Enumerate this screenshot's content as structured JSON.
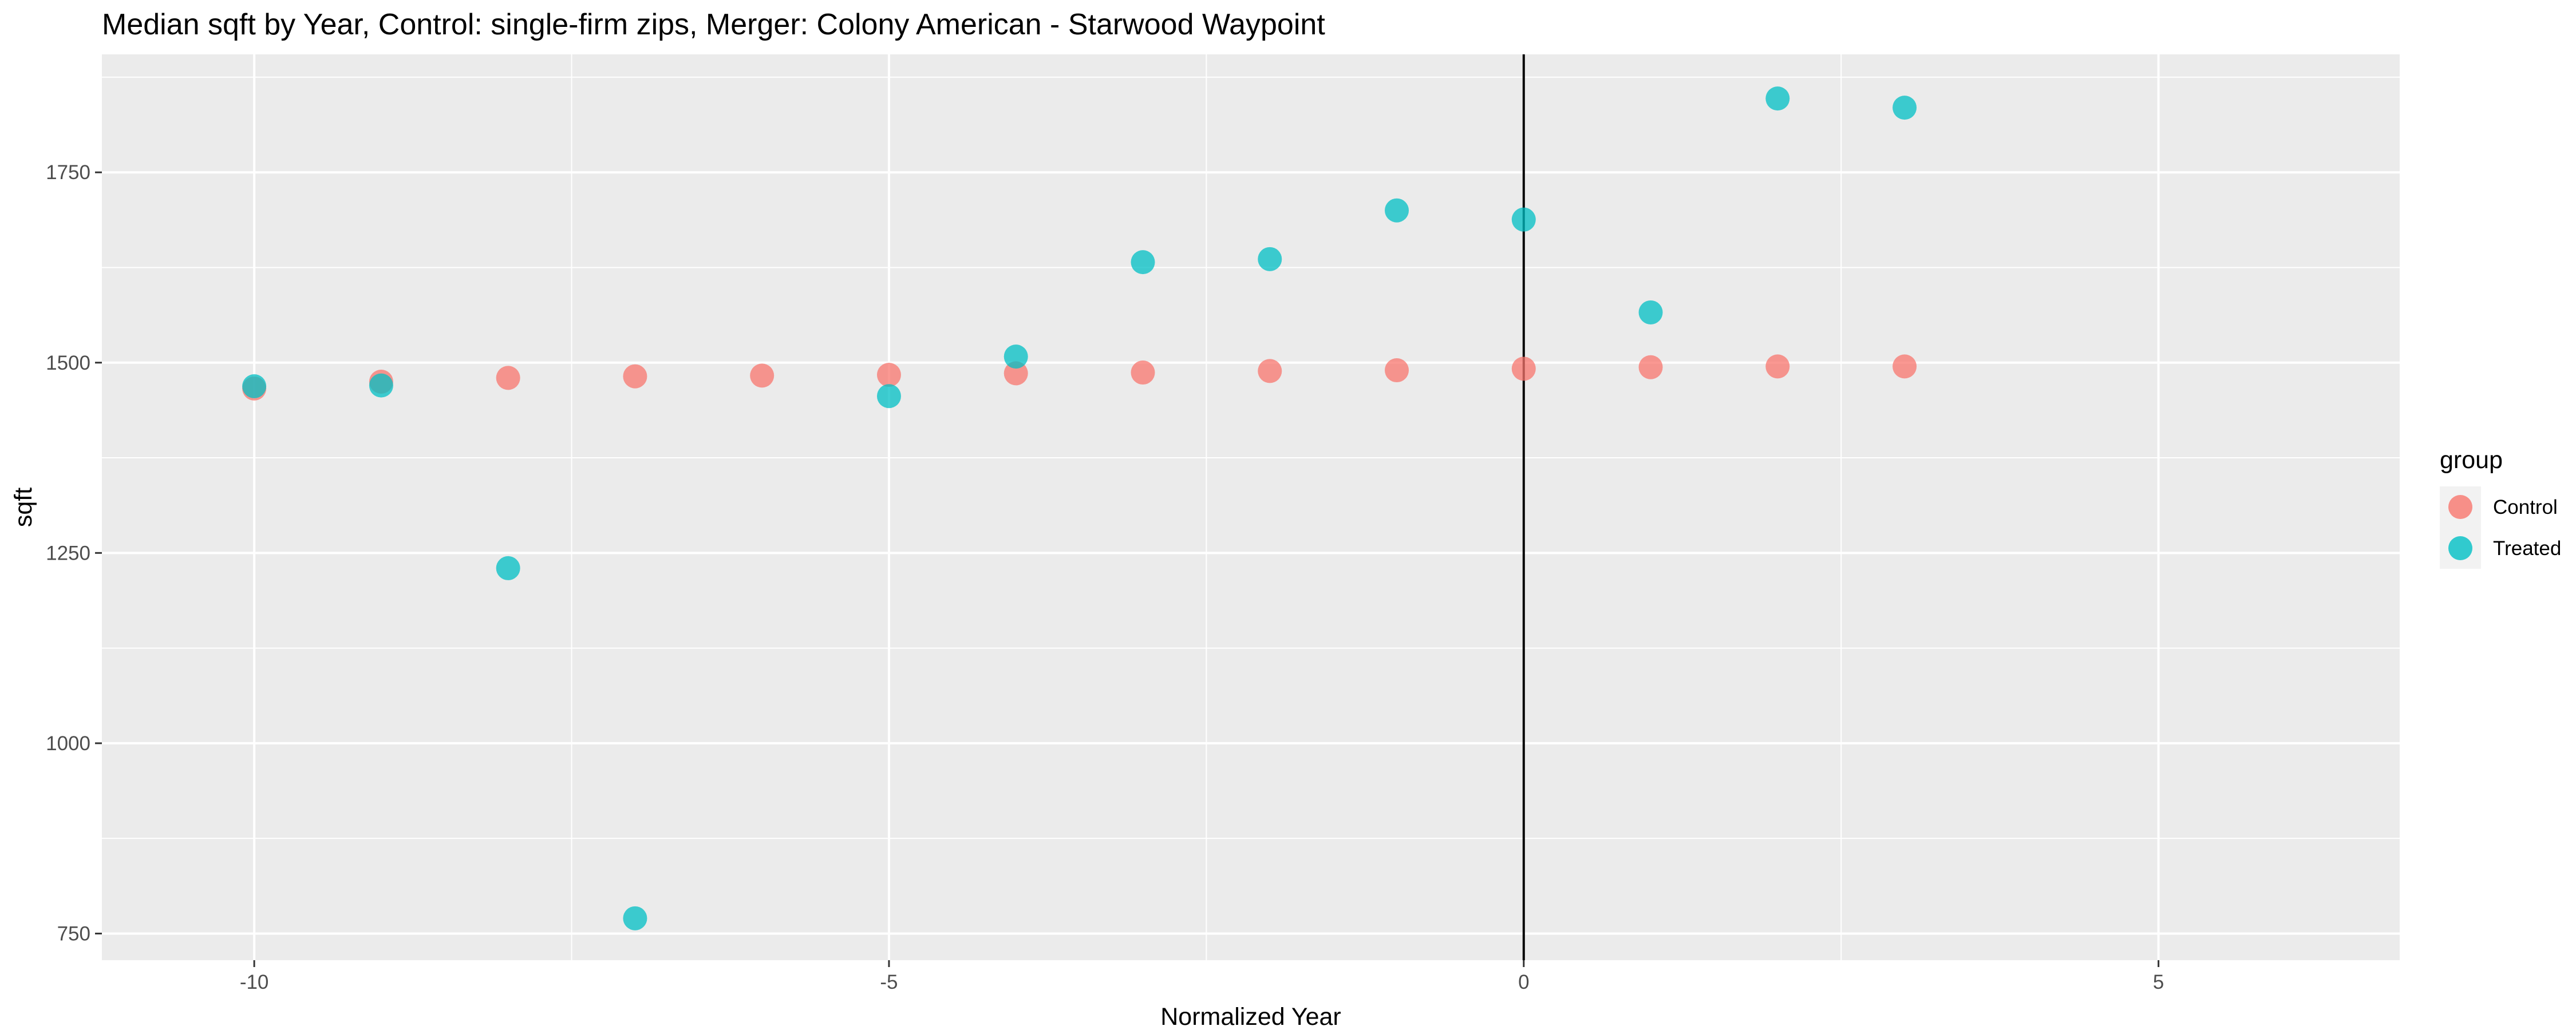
{
  "chart_data": {
    "type": "scatter",
    "title": "Median sqft by Year, Control: single-firm zips, Merger: Colony American - Starwood Waypoint",
    "xlabel": "Normalized Year",
    "ylabel": "sqft",
    "xlim": [
      -11.2,
      6.9
    ],
    "ylim": [
      715,
      1905
    ],
    "x_ticks": [
      -10,
      -5,
      0,
      5
    ],
    "y_ticks": [
      750,
      1000,
      1250,
      1500,
      1750
    ],
    "grid": true,
    "reference_line_x": 0,
    "legend": {
      "title": "group",
      "position": "right"
    },
    "series": [
      {
        "name": "Control",
        "color": "#F8766D",
        "points": [
          {
            "x": -10,
            "y": 1466
          },
          {
            "x": -9,
            "y": 1475
          },
          {
            "x": -8,
            "y": 1480
          },
          {
            "x": -7,
            "y": 1482
          },
          {
            "x": -6,
            "y": 1483
          },
          {
            "x": -5,
            "y": 1484
          },
          {
            "x": -4,
            "y": 1486
          },
          {
            "x": -3,
            "y": 1487
          },
          {
            "x": -2,
            "y": 1489
          },
          {
            "x": -1,
            "y": 1490
          },
          {
            "x": 0,
            "y": 1492
          },
          {
            "x": 1,
            "y": 1494
          },
          {
            "x": 2,
            "y": 1495
          },
          {
            "x": 3,
            "y": 1495
          }
        ]
      },
      {
        "name": "Treated",
        "color": "#00BFC4",
        "points": [
          {
            "x": -10,
            "y": 1469
          },
          {
            "x": -9,
            "y": 1470
          },
          {
            "x": -8,
            "y": 1230
          },
          {
            "x": -7,
            "y": 770
          },
          {
            "x": -5,
            "y": 1456
          },
          {
            "x": -4,
            "y": 1508
          },
          {
            "x": -3,
            "y": 1632
          },
          {
            "x": -2,
            "y": 1636
          },
          {
            "x": -1,
            "y": 1700
          },
          {
            "x": 0,
            "y": 1688
          },
          {
            "x": 1,
            "y": 1566
          },
          {
            "x": 2,
            "y": 1847
          },
          {
            "x": 3,
            "y": 1835
          }
        ]
      }
    ]
  }
}
